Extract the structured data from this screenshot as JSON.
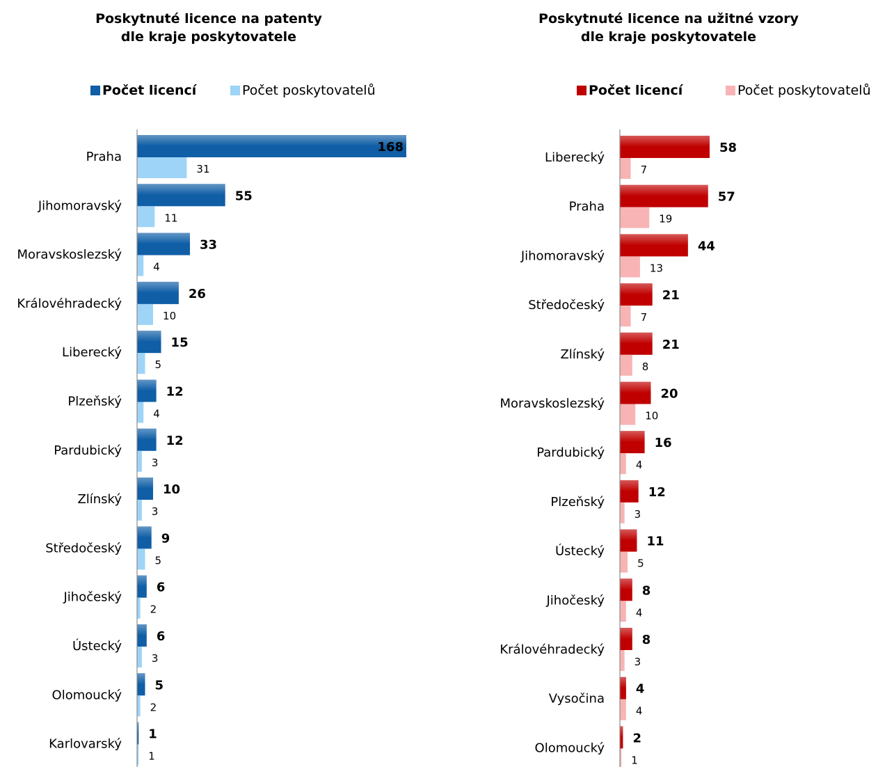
{
  "chart_data": [
    {
      "type": "bar",
      "orientation": "horizontal",
      "title": "Poskytnuté licence na patenty\ndle kraje poskytovatele",
      "legend_position": "top",
      "categories": [
        "Praha",
        "Jihomoravský",
        "Moravskoslezský",
        "Královéhradecký",
        "Liberecký",
        "Plzeňský",
        "Pardubický",
        "Zlínský",
        "Středočeský",
        "Jihočeský",
        "Ústecký",
        "Olomoucký",
        "Karlovarský"
      ],
      "series": [
        {
          "name": "Počet licencí",
          "color": "#0f5ea6",
          "values": [
            168,
            55,
            33,
            26,
            15,
            12,
            12,
            10,
            9,
            6,
            6,
            5,
            1
          ]
        },
        {
          "name": "Počet poskytovatelů",
          "color": "#9ed4f7",
          "values": [
            31,
            11,
            4,
            10,
            5,
            4,
            3,
            3,
            5,
            2,
            3,
            2,
            1
          ]
        }
      ],
      "xlim": [
        0,
        170
      ],
      "grid": false
    },
    {
      "type": "bar",
      "orientation": "horizontal",
      "title": "Poskytnuté licence na užitné vzory\ndle kraje poskytovatele",
      "legend_position": "top",
      "categories": [
        "Liberecký",
        "Praha",
        "Jihomoravský",
        "Středočeský",
        "Zlínský",
        "Moravskoslezský",
        "Pardubický",
        "Plzeňský",
        "Ústecký",
        "Jihočeský",
        "Královéhradecký",
        "Vysočina",
        "Olomoucký"
      ],
      "series": [
        {
          "name": "Počet licencí",
          "color": "#c00000",
          "values": [
            58,
            57,
            44,
            21,
            21,
            20,
            16,
            12,
            11,
            8,
            8,
            4,
            2
          ]
        },
        {
          "name": "Počet poskytovatelů",
          "color": "#f8b4b4",
          "values": [
            7,
            19,
            13,
            7,
            8,
            10,
            4,
            3,
            5,
            4,
            3,
            4,
            1
          ]
        }
      ],
      "xlim": [
        0,
        70
      ],
      "grid": false
    }
  ]
}
